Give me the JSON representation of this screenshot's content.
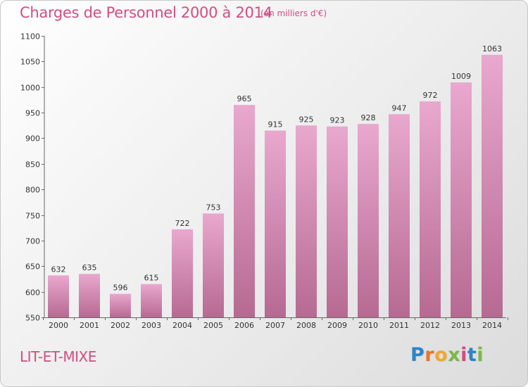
{
  "header": {
    "title": "Charges de Personnel 2000 à 2014",
    "unit_note": "(en milliers d'€)"
  },
  "footer": {
    "commune": "LIT-ET-MIXE",
    "logo": {
      "letters": [
        "P",
        "r",
        "o",
        "x",
        "i",
        "t",
        "i"
      ],
      "colors": [
        "#2c84c6",
        "#e8742c",
        "#f0a830",
        "#7ab844",
        "#d04e84",
        "#2c84c6",
        "#7ab844"
      ]
    }
  },
  "chart_data": {
    "type": "bar",
    "categories": [
      "2000",
      "2001",
      "2002",
      "2003",
      "2004",
      "2005",
      "2006",
      "2007",
      "2008",
      "2009",
      "2010",
      "2011",
      "2012",
      "2013",
      "2014"
    ],
    "values": [
      632,
      635,
      596,
      615,
      722,
      753,
      965,
      915,
      925,
      923,
      928,
      947,
      972,
      1009,
      1063
    ],
    "data_labels": [
      "632",
      "635",
      "596",
      "615",
      "722",
      "753",
      "965",
      "915",
      "925",
      "923",
      "928",
      "947",
      "972",
      "1009",
      "1063"
    ],
    "ylim": [
      550,
      1100
    ],
    "yticks": [
      550,
      600,
      650,
      700,
      750,
      800,
      850,
      900,
      950,
      1000,
      1050,
      1100
    ],
    "ytick_labels": [
      "550",
      "600",
      "650",
      "700",
      "750",
      "800",
      "850",
      "900",
      "950",
      "1000",
      "1050",
      "1100"
    ],
    "xlabel": "",
    "ylabel": "",
    "grid": false,
    "colors": {
      "bar_light": "#e9a8ce",
      "bar_dark": "#b66a92",
      "axis": "#666666",
      "text": "#333333"
    }
  }
}
